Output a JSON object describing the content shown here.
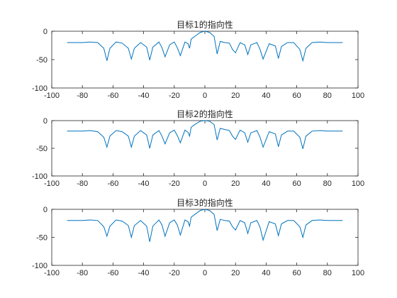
{
  "chart_data": [
    {
      "type": "line",
      "title": "目标1的指向性",
      "xlim": [
        -100,
        100
      ],
      "ylim": [
        -100,
        0
      ],
      "xticks": [
        "-100",
        "-80",
        "-60",
        "-40",
        "-20",
        "0",
        "20",
        "40",
        "60",
        "80",
        "100"
      ],
      "yticks": [
        "0",
        "-50",
        "-100"
      ],
      "grid": false,
      "color": "#0072BD",
      "series": [
        {
          "x": [
            -90,
            -80,
            -75,
            -70,
            -66,
            -64,
            -62,
            -58,
            -54,
            -50,
            -48,
            -46,
            -42,
            -38,
            -36,
            -34,
            -30,
            -28,
            -26,
            -23,
            -20,
            -18,
            -16,
            -13,
            -11,
            -10,
            -9,
            -6,
            -3,
            0,
            3,
            6,
            8,
            10,
            13,
            16,
            18,
            20,
            23,
            26,
            28,
            30,
            34,
            36,
            38,
            42,
            46,
            48,
            50,
            54,
            58,
            62,
            64,
            66,
            70,
            75,
            80,
            90
          ],
          "y": [
            -20,
            -20,
            -19,
            -20,
            -30,
            -52,
            -30,
            -19,
            -21,
            -30,
            -49,
            -30,
            -20,
            -28,
            -51,
            -28,
            -19,
            -29,
            -45,
            -24,
            -19,
            -29,
            -43,
            -19,
            -22,
            -30,
            -14,
            -8,
            -2,
            0,
            -2,
            -9,
            -40,
            -18,
            -20,
            -21,
            -32,
            -38,
            -20,
            -24,
            -41,
            -24,
            -20,
            -32,
            -49,
            -22,
            -26,
            -48,
            -27,
            -20,
            -20,
            -32,
            -52,
            -30,
            -20,
            -19,
            -20,
            -20
          ]
        }
      ]
    },
    {
      "type": "line",
      "title": "目标2的指向性",
      "xlim": [
        -100,
        100
      ],
      "ylim": [
        -100,
        0
      ],
      "xticks": [
        "-100",
        "-80",
        "-60",
        "-40",
        "-20",
        "0",
        "20",
        "40",
        "60",
        "80",
        "100"
      ],
      "yticks": [
        "0",
        "-50",
        "-100"
      ],
      "grid": false,
      "color": "#0072BD",
      "series": [
        {
          "x": [
            -90,
            -80,
            -75,
            -70,
            -66,
            -64,
            -62,
            -58,
            -54,
            -50,
            -48,
            -46,
            -42,
            -38,
            -36,
            -34,
            -30,
            -28,
            -26,
            -23,
            -20,
            -18,
            -16,
            -13,
            -11,
            -10,
            -9,
            -6,
            -3,
            0,
            3,
            6,
            8,
            10,
            13,
            16,
            18,
            20,
            23,
            26,
            28,
            30,
            34,
            36,
            38,
            42,
            46,
            48,
            50,
            54,
            58,
            62,
            64,
            66,
            70,
            75,
            80,
            90
          ],
          "y": [
            -19,
            -19,
            -18,
            -20,
            -30,
            -48,
            -28,
            -18,
            -20,
            -28,
            -48,
            -28,
            -18,
            -26,
            -50,
            -26,
            -18,
            -28,
            -42,
            -22,
            -17,
            -27,
            -40,
            -17,
            -21,
            -28,
            -12,
            -6,
            -1,
            0,
            -1,
            -7,
            -35,
            -14,
            -16,
            -18,
            -28,
            -34,
            -17,
            -22,
            -39,
            -22,
            -18,
            -30,
            -48,
            -20,
            -24,
            -47,
            -26,
            -19,
            -19,
            -30,
            -51,
            -28,
            -19,
            -18,
            -19,
            -19
          ]
        }
      ]
    },
    {
      "type": "line",
      "title": "目标3的指向性",
      "xlim": [
        -100,
        100
      ],
      "ylim": [
        -100,
        0
      ],
      "xticks": [
        "-100",
        "-80",
        "-60",
        "-40",
        "-20",
        "0",
        "20",
        "40",
        "60",
        "80",
        "100"
      ],
      "yticks": [
        "0",
        "-50",
        "-100"
      ],
      "grid": false,
      "color": "#0072BD",
      "series": [
        {
          "x": [
            -90,
            -80,
            -75,
            -70,
            -66,
            -64,
            -62,
            -58,
            -54,
            -50,
            -48,
            -46,
            -42,
            -38,
            -36,
            -34,
            -30,
            -28,
            -26,
            -23,
            -20,
            -18,
            -16,
            -13,
            -11,
            -10,
            -9,
            -6,
            -3,
            0,
            3,
            6,
            8,
            10,
            13,
            16,
            18,
            20,
            23,
            26,
            28,
            30,
            34,
            36,
            38,
            42,
            46,
            48,
            50,
            54,
            58,
            62,
            64,
            66,
            70,
            75,
            80,
            90
          ],
          "y": [
            -20,
            -20,
            -19,
            -20,
            -31,
            -48,
            -30,
            -19,
            -21,
            -29,
            -50,
            -29,
            -20,
            -30,
            -58,
            -30,
            -19,
            -28,
            -48,
            -24,
            -19,
            -28,
            -46,
            -19,
            -22,
            -30,
            -14,
            -8,
            -2,
            0,
            -2,
            -9,
            -38,
            -18,
            -20,
            -21,
            -31,
            -37,
            -20,
            -24,
            -43,
            -24,
            -20,
            -32,
            -55,
            -22,
            -26,
            -47,
            -26,
            -20,
            -20,
            -31,
            -50,
            -28,
            -20,
            -19,
            -20,
            -20
          ]
        }
      ]
    }
  ]
}
